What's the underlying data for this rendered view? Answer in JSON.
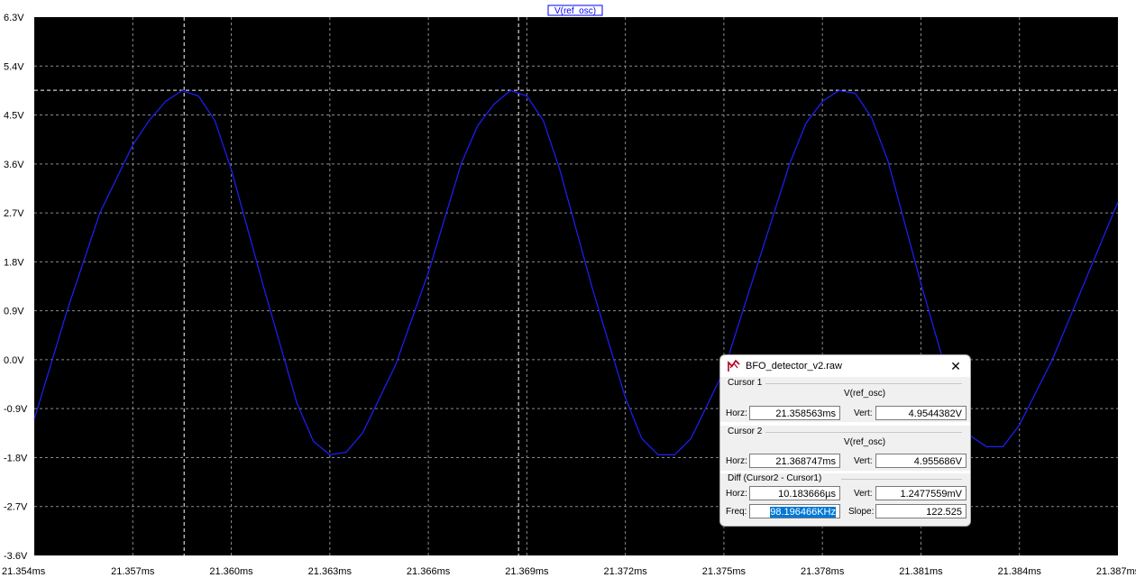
{
  "chart_data": {
    "type": "line",
    "trace_label": "V(ref_osc)",
    "y_ticks": [
      "6.3V",
      "5.4V",
      "4.5V",
      "3.6V",
      "2.7V",
      "1.8V",
      "0.9V",
      "0.0V",
      "-0.9V",
      "-1.8V",
      "-2.7V",
      "-3.6V"
    ],
    "x_ticks": [
      "21.354ms",
      "21.357ms",
      "21.360ms",
      "21.363ms",
      "21.366ms",
      "21.369ms",
      "21.372ms",
      "21.375ms",
      "21.378ms",
      "21.381ms",
      "21.384ms",
      "21.387ms"
    ],
    "x_tick_values": [
      21.354,
      21.357,
      21.36,
      21.363,
      21.366,
      21.369,
      21.372,
      21.375,
      21.378,
      21.381,
      21.384,
      21.387
    ],
    "xlim": [
      21.354,
      21.387
    ],
    "ylim": [
      -3.6,
      6.3
    ],
    "grid": true,
    "series": [
      {
        "name": "V(ref_osc)",
        "color": "#1f1fff",
        "x": [
          21.354,
          21.355,
          21.356,
          21.357,
          21.3575,
          21.358,
          21.3585,
          21.359,
          21.3595,
          21.36,
          21.361,
          21.362,
          21.3625,
          21.363,
          21.3635,
          21.364,
          21.365,
          21.366,
          21.367,
          21.3675,
          21.368,
          21.3685,
          21.369,
          21.3695,
          21.37,
          21.371,
          21.372,
          21.3725,
          21.373,
          21.3735,
          21.374,
          21.375,
          21.376,
          21.377,
          21.3775,
          21.378,
          21.3785,
          21.379,
          21.3795,
          21.38,
          21.381,
          21.382,
          21.3825,
          21.383,
          21.3835,
          21.384,
          21.385,
          21.386,
          21.387
        ],
        "y": [
          -1.1,
          0.9,
          2.7,
          3.95,
          4.4,
          4.75,
          4.95,
          4.85,
          4.4,
          3.5,
          1.3,
          -0.8,
          -1.5,
          -1.75,
          -1.7,
          -1.35,
          -0.1,
          1.6,
          3.6,
          4.3,
          4.7,
          4.95,
          4.85,
          4.4,
          3.5,
          1.3,
          -0.7,
          -1.45,
          -1.75,
          -1.75,
          -1.45,
          -0.2,
          1.7,
          3.6,
          4.35,
          4.75,
          4.95,
          4.9,
          4.45,
          3.65,
          1.4,
          -0.7,
          -1.4,
          -1.6,
          -1.6,
          -1.2,
          0.0,
          1.45,
          2.9
        ]
      }
    ],
    "cursor1_x": 21.358563,
    "cursor2_x": 21.368747,
    "cursor_level_y": 4.955686
  },
  "dialog": {
    "title": "BFO_detector_v2.raw",
    "cursor1": {
      "section_title": "Cursor 1",
      "trace": "V(ref_osc)",
      "horz_label": "Horz:",
      "horz_value": "21.358563ms",
      "vert_label": "Vert:",
      "vert_value": "4.9544382V"
    },
    "cursor2": {
      "section_title": "Cursor 2",
      "trace": "V(ref_osc)",
      "horz_label": "Horz:",
      "horz_value": "21.368747ms",
      "vert_label": "Vert:",
      "vert_value": "4.955686V"
    },
    "diff": {
      "section_title": "Diff (Cursor2 - Cursor1)",
      "horz_label": "Horz:",
      "horz_value": "10.183666µs",
      "vert_label": "Vert:",
      "vert_value": "1.2477559mV",
      "freq_label": "Freq:",
      "freq_value": "98.196466KHz",
      "slope_label": "Slope:",
      "slope_value": "122.525"
    },
    "close_symbol": "✕"
  },
  "colors": {
    "plot_background": "#000000",
    "grid": "#8a8a8a",
    "trace": "#1f1fff",
    "cursor": "#ffffff",
    "selection": "#0078d7"
  }
}
